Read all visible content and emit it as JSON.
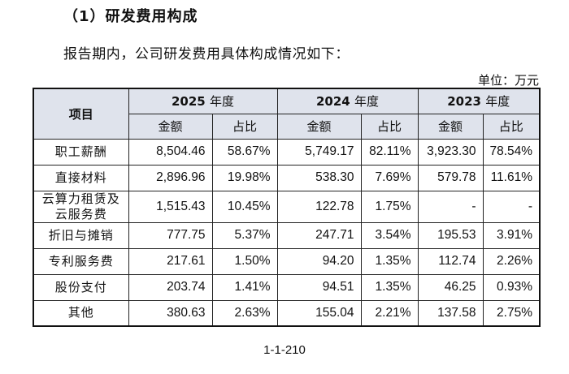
{
  "heading": "（1）研发费用构成",
  "intro": "报告期内，公司研发费用具体构成情况如下：",
  "unit": "单位：万元",
  "table": {
    "item_header": "项目",
    "years": [
      {
        "year": "2025",
        "suffix": "年度"
      },
      {
        "year": "2024",
        "suffix": "年度"
      },
      {
        "year": "2023",
        "suffix": "年度"
      }
    ],
    "sub_headers": [
      "金额",
      "占比",
      "金额",
      "占比",
      "金额",
      "占比"
    ],
    "rows": [
      {
        "name": "职工薪酬",
        "cells": [
          "8,504.46",
          "58.67%",
          "5,749.17",
          "82.11%",
          "3,923.30",
          "78.54%"
        ]
      },
      {
        "name": "直接材料",
        "cells": [
          "2,896.96",
          "19.98%",
          "538.30",
          "7.69%",
          "579.78",
          "11.61%"
        ]
      },
      {
        "name": "云算力租赁及云服务费",
        "cells": [
          "1,515.43",
          "10.45%",
          "122.78",
          "1.75%",
          "-",
          "-"
        ]
      },
      {
        "name": "折旧与摊销",
        "cells": [
          "777.75",
          "5.37%",
          "247.71",
          "3.54%",
          "195.53",
          "3.91%"
        ]
      },
      {
        "name": "专利服务费",
        "cells": [
          "217.61",
          "1.50%",
          "94.20",
          "1.35%",
          "112.74",
          "2.26%"
        ]
      },
      {
        "name": "股份支付",
        "cells": [
          "203.74",
          "1.41%",
          "94.51",
          "1.35%",
          "46.25",
          "0.93%"
        ]
      },
      {
        "name": "其他",
        "cells": [
          "380.63",
          "2.63%",
          "155.04",
          "2.21%",
          "137.58",
          "2.75%"
        ]
      }
    ]
  },
  "page_number": "1-1-210"
}
